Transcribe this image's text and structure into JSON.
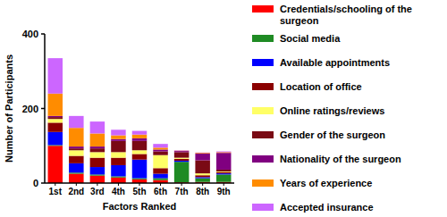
{
  "chart_data": {
    "type": "bar",
    "stacked": true,
    "legend": "right",
    "grid": false,
    "xlabel": "Factors Ranked",
    "ylabel": "Number of Participants",
    "categories": [
      "1st",
      "2nd",
      "3rd",
      "4th",
      "5th",
      "6th",
      "7th",
      "8th",
      "9th"
    ],
    "ylim": [
      0,
      400
    ],
    "yticks": [
      0,
      200,
      400
    ],
    "series": [
      {
        "name": "Credentials/schooling of the surgeon",
        "color": "#ff0000",
        "values": [
          100,
          25,
          20,
          15,
          10,
          8,
          2,
          3,
          3
        ]
      },
      {
        "name": "Social media",
        "color": "#1f8b24",
        "values": [
          2,
          3,
          3,
          3,
          3,
          5,
          55,
          10,
          20
        ]
      },
      {
        "name": "Available appointments",
        "color": "#0000ff",
        "values": [
          35,
          25,
          20,
          30,
          50,
          12,
          3,
          3,
          3
        ]
      },
      {
        "name": "Location of office",
        "color": "#8b0000",
        "values": [
          25,
          20,
          25,
          20,
          15,
          15,
          5,
          5,
          3
        ]
      },
      {
        "name": "Online ratings/reviews",
        "color": "#ffff66",
        "values": [
          10,
          15,
          15,
          15,
          10,
          35,
          3,
          5,
          2
        ]
      },
      {
        "name": "Gender of the surgeon",
        "color": "#7a0a14",
        "values": [
          5,
          5,
          10,
          30,
          25,
          10,
          15,
          35,
          5
        ]
      },
      {
        "name": "Nationality of the surgeon",
        "color": "#800080",
        "values": [
          3,
          5,
          5,
          5,
          7,
          5,
          3,
          18,
          45
        ]
      },
      {
        "name": "Years of experience",
        "color": "#ff8c00",
        "values": [
          60,
          50,
          35,
          10,
          10,
          5,
          1,
          2,
          2
        ]
      },
      {
        "name": "Accepted insurance",
        "color": "#cc66ff",
        "values": [
          95,
          32,
          32,
          15,
          10,
          10,
          1,
          1,
          2
        ]
      }
    ]
  }
}
